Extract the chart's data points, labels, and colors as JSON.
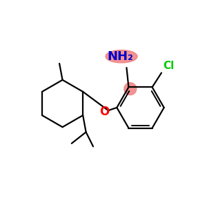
{
  "background_color": "#ffffff",
  "bond_color": "#000000",
  "highlight_color_nh2": "#f08080",
  "highlight_color_ring": "#f08080",
  "nh2_text_color": "#0000cc",
  "cl_text_color": "#00cc00",
  "o_text_color": "#ff0000",
  "nh2_label": "NH₂",
  "cl_label": "Cl",
  "o_label": "O",
  "lw": 1.6
}
